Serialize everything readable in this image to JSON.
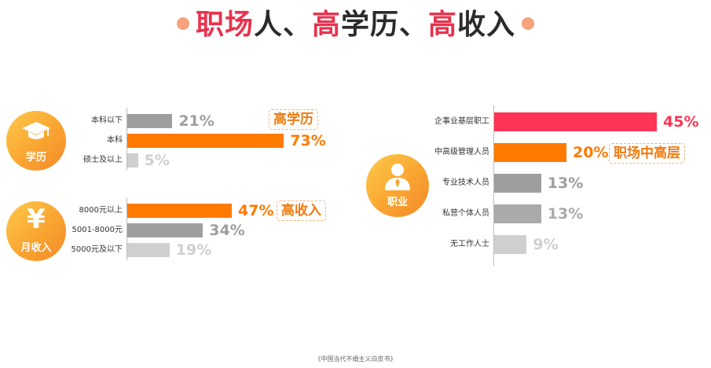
{
  "title": {
    "part1": "职场",
    "part2": "人、",
    "part3": "高",
    "part4": "学历、",
    "part5": "高",
    "part6": "收入"
  },
  "colors": {
    "accent_red": "#ff3355",
    "accent_orange": "#ff7a00",
    "gray_dark": "#9a9a9a",
    "gray_light": "#c8c8c8"
  },
  "chart_data": [
    {
      "type": "bar",
      "group": "学历",
      "categories": [
        "本科以下",
        "本科",
        "硕士及以上"
      ],
      "values": [
        21,
        73,
        5
      ],
      "value_labels": [
        "21%",
        "73%",
        "5%"
      ],
      "colors": [
        "#9e9e9e",
        "#ff7a00",
        "#cfcfcf"
      ],
      "highlight_label": "高学历",
      "xlim": [
        0,
        100
      ]
    },
    {
      "type": "bar",
      "group": "月收入",
      "categories": [
        "8000元以上",
        "5001-8000元",
        "5000元及以下"
      ],
      "values": [
        47,
        34,
        19
      ],
      "value_labels": [
        "47%",
        "34%",
        "19%"
      ],
      "colors": [
        "#ff7a00",
        "#9e9e9e",
        "#cfcfcf"
      ],
      "highlight_label": "高收入",
      "xlim": [
        0,
        100
      ]
    },
    {
      "type": "bar",
      "group": "职业",
      "categories": [
        "企事业基层职工",
        "中高级管理人员",
        "专业技术人员",
        "私营个体人员",
        "无工作人士"
      ],
      "values": [
        45,
        20,
        13,
        13,
        9
      ],
      "value_labels": [
        "45%",
        "20%",
        "13%",
        "13%",
        "9%"
      ],
      "colors": [
        "#ff3355",
        "#ff7a00",
        "#9e9e9e",
        "#aaaaaa",
        "#cfcfcf"
      ],
      "highlight_label": "职场中高层",
      "xlim": [
        0,
        60
      ]
    }
  ],
  "icons": {
    "education": "graduation-cap-icon",
    "income": "yen-icon",
    "occupation": "person-icon"
  },
  "footer": "《中国当代不婚主义白皮书》"
}
